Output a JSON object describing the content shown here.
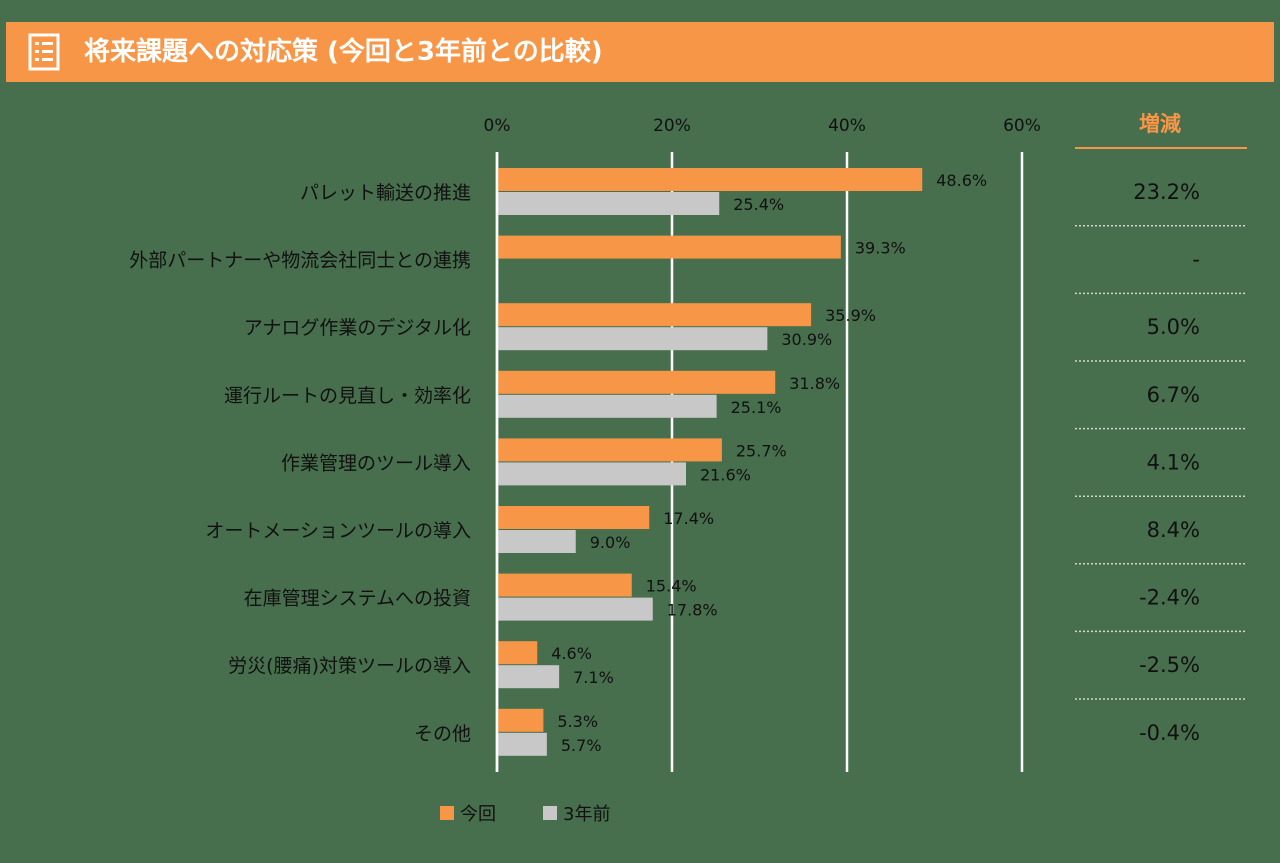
{
  "header": {
    "title": "将来課題への対応策 (今回と3年前との比較)",
    "icon": "list-document-icon",
    "color": "#f79646"
  },
  "colors": {
    "background": "#476e4d",
    "current": "#f79646",
    "previous": "#c8c8c8"
  },
  "chart_data": {
    "type": "bar",
    "orientation": "horizontal",
    "categories": [
      "パレット輸送の推進",
      "外部パートナーや物流会社同士との連携",
      "アナログ作業のデジタル化",
      "運行ルートの見直し・効率化",
      "作業管理のツール導入",
      "オートメーションツールの導入",
      "在庫管理システムへの投資",
      "労災(腰痛)対策ツールの導入",
      "その他"
    ],
    "series": [
      {
        "name": "今回",
        "values": [
          48.6,
          39.3,
          35.9,
          31.8,
          25.7,
          17.4,
          15.4,
          4.6,
          5.3
        ],
        "labels": [
          "48.6%",
          "39.3%",
          "35.9%",
          "31.8%",
          "25.7%",
          "17.4%",
          "15.4%",
          "4.6%",
          "5.3%"
        ]
      },
      {
        "name": "3年前",
        "values": [
          25.4,
          null,
          30.9,
          25.1,
          21.6,
          9.0,
          17.8,
          7.1,
          5.7
        ],
        "labels": [
          "25.4%",
          "",
          "30.9%",
          "25.1%",
          "21.6%",
          "9.0%",
          "17.8%",
          "7.1%",
          "5.7%"
        ]
      }
    ],
    "x_ticks": [
      "0%",
      "20%",
      "40%",
      "60%"
    ],
    "xlim": [
      0,
      60
    ],
    "grid": true,
    "legend_position": "bottom",
    "diff_header": "増減",
    "diff_values": [
      "23.2%",
      "-",
      "5.0%",
      "6.7%",
      "4.1%",
      "8.4%",
      "-2.4%",
      "-2.5%",
      "-0.4%"
    ]
  }
}
